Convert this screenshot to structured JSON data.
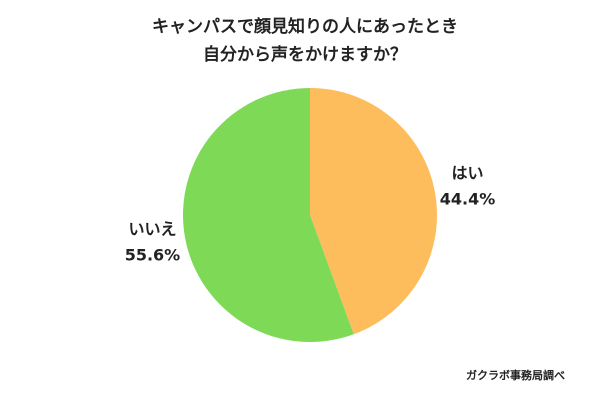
{
  "chart_data": {
    "type": "pie",
    "title": [
      "キャンパスで顔見知りの人にあったとき",
      "自分から声をかけますか？"
    ],
    "categories": [
      "はい",
      "いいえ"
    ],
    "values": [
      44.4,
      55.6
    ],
    "value_labels": [
      "44.4%",
      "55.6%"
    ],
    "colors": [
      "#fdbd5c",
      "#7ed957"
    ],
    "source": "ガクラボ事務局調べ"
  }
}
